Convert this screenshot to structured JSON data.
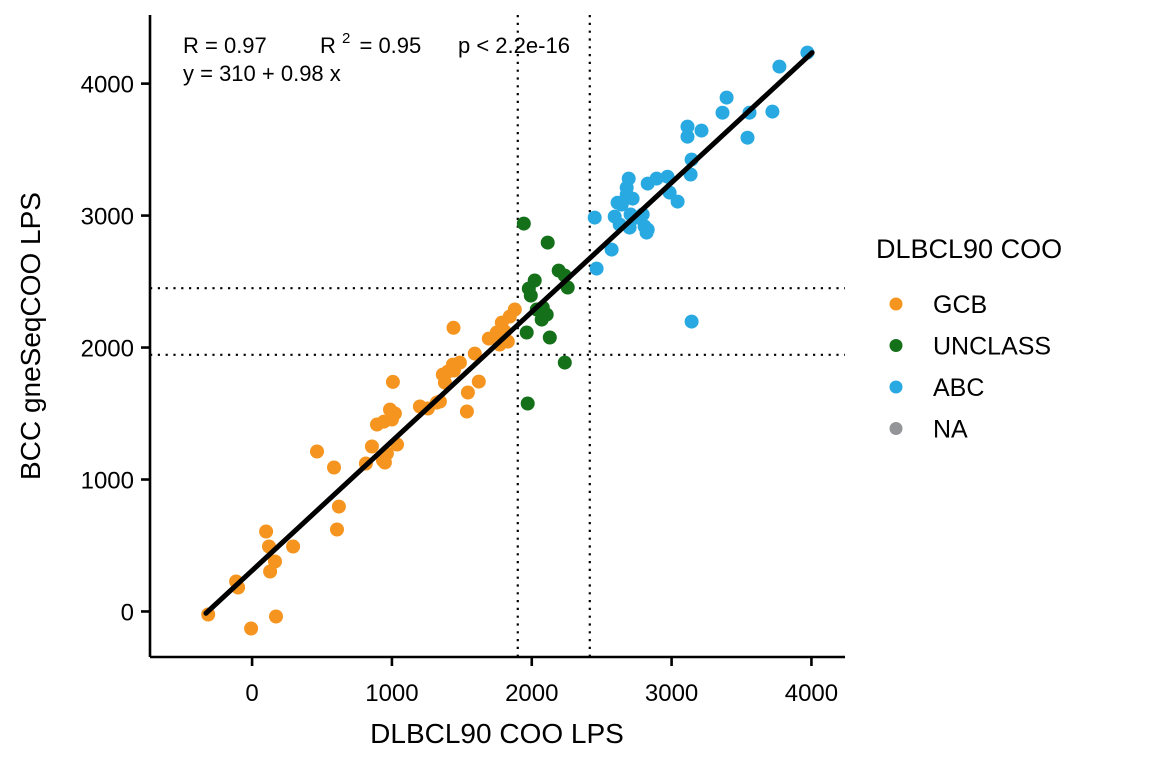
{
  "figure": {
    "background": "#ffffff"
  },
  "annotations": {
    "r": "R = 0.97",
    "r2_base": "R",
    "r2_sup": "2",
    "r2_eq": "= 0.95",
    "p": "p < 2.2e-16",
    "equation": "y = 310 + 0.98 x"
  },
  "chart_data": {
    "type": "scatter",
    "title": "",
    "xlabel": "DLBCL90 COO LPS",
    "ylabel": "BCC gneSeqCOO LPS",
    "xlim": [
      -730,
      4240
    ],
    "ylim": [
      -345,
      4520
    ],
    "x_ticks": [
      0,
      1000,
      2000,
      3000,
      4000
    ],
    "y_ticks": [
      0,
      1000,
      2000,
      3000,
      4000
    ],
    "grid": false,
    "legend": {
      "title": "DLBCL90 COO",
      "position": "right"
    },
    "regression": {
      "equation": "y = 310 + 0.98 x",
      "intercept": 310,
      "slope": 0.98,
      "x_start": -330,
      "x_end": 4005,
      "color": "#000000"
    },
    "reference_lines": {
      "vertical": [
        1900,
        2415
      ],
      "horizontal": [
        1945,
        2450
      ]
    },
    "series": [
      {
        "name": "GCB",
        "color": "#F5941F",
        "points": [
          [
            -314,
            -23
          ],
          [
            -7,
            -129
          ],
          [
            171,
            -38
          ],
          [
            -100,
            182
          ],
          [
            -114,
            227
          ],
          [
            129,
            303
          ],
          [
            164,
            379
          ],
          [
            121,
            492
          ],
          [
            100,
            606
          ],
          [
            293,
            492
          ],
          [
            464,
            1212
          ],
          [
            586,
            1091
          ],
          [
            607,
            621
          ],
          [
            621,
            795
          ],
          [
            814,
            1121
          ],
          [
            857,
            1250
          ],
          [
            893,
            1417
          ],
          [
            936,
            1144
          ],
          [
            950,
            1129
          ],
          [
            943,
            1439
          ],
          [
            964,
            1197
          ],
          [
            986,
            1530
          ],
          [
            1000,
            1455
          ],
          [
            1007,
            1740
          ],
          [
            1021,
            1500
          ],
          [
            1036,
            1265
          ],
          [
            1200,
            1553
          ],
          [
            1257,
            1538
          ],
          [
            1321,
            1583
          ],
          [
            1343,
            1591
          ],
          [
            1364,
            1795
          ],
          [
            1379,
            1735
          ],
          [
            1400,
            1818
          ],
          [
            1436,
            1871
          ],
          [
            1443,
            1826
          ],
          [
            1486,
            1886
          ],
          [
            1536,
            1515
          ],
          [
            1543,
            1659
          ],
          [
            1593,
            1954
          ],
          [
            1621,
            1742
          ],
          [
            1693,
            2068
          ],
          [
            1440,
            2150
          ],
          [
            1750,
            2114
          ],
          [
            1771,
            2023
          ],
          [
            1786,
            2189
          ],
          [
            1807,
            2121
          ],
          [
            1829,
            2045
          ],
          [
            1843,
            2235
          ],
          [
            1879,
            2288
          ]
        ]
      },
      {
        "name": "UNCLASS",
        "color": "#15701A",
        "points": [
          [
            1943,
            2939
          ],
          [
            2114,
            2795
          ],
          [
            2193,
            2583
          ],
          [
            2236,
            2545
          ],
          [
            2021,
            2508
          ],
          [
            1979,
            2447
          ],
          [
            2257,
            2455
          ],
          [
            1993,
            2394
          ],
          [
            2036,
            2288
          ],
          [
            2079,
            2303
          ],
          [
            2107,
            2250
          ],
          [
            2071,
            2212
          ],
          [
            1964,
            2114
          ],
          [
            2129,
            2076
          ],
          [
            2236,
            1886
          ],
          [
            1971,
            1576
          ]
        ]
      },
      {
        "name": "ABC",
        "color": "#29A9E1",
        "points": [
          [
            2450,
            2985
          ],
          [
            2464,
            2598
          ],
          [
            2571,
            2742
          ],
          [
            2629,
            2932
          ],
          [
            2643,
            3083
          ],
          [
            2679,
            3159
          ],
          [
            2750,
            2985
          ],
          [
            2793,
            3008
          ],
          [
            2829,
            2894
          ],
          [
            2593,
            2992
          ],
          [
            2614,
            3098
          ],
          [
            2679,
            3212
          ],
          [
            2693,
            3280
          ],
          [
            2700,
            2909
          ],
          [
            2707,
            3008
          ],
          [
            2721,
            3129
          ],
          [
            2807,
            2917
          ],
          [
            2821,
            2871
          ],
          [
            2829,
            3242
          ],
          [
            2893,
            3280
          ],
          [
            2971,
            3295
          ],
          [
            2986,
            3174
          ],
          [
            3043,
            3106
          ],
          [
            3114,
            3674
          ],
          [
            3114,
            3598
          ],
          [
            3136,
            3311
          ],
          [
            3143,
            3424
          ],
          [
            3214,
            3644
          ],
          [
            3364,
            3780
          ],
          [
            3393,
            3894
          ],
          [
            3543,
            3590
          ],
          [
            3557,
            3780
          ],
          [
            3721,
            3788
          ],
          [
            3771,
            4129
          ],
          [
            3971,
            4235
          ],
          [
            3143,
            2197
          ]
        ]
      },
      {
        "name": "NA",
        "color": "#939598",
        "points": []
      }
    ]
  }
}
